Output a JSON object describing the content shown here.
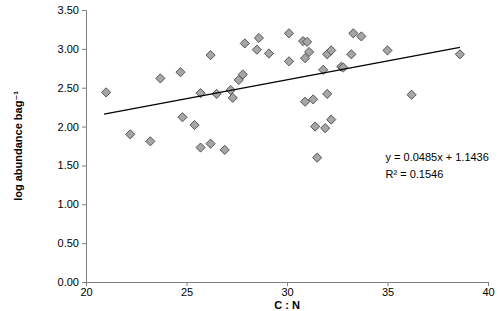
{
  "chart_data": {
    "type": "scatter",
    "x_label": "C : N",
    "y_label": "log abundance bag⁻¹",
    "annotations": [
      "y = 0.0485x + 1.1436",
      "R² = 0.1546"
    ],
    "xlim": [
      20,
      40
    ],
    "xticks": [
      20,
      25,
      30,
      35,
      40
    ],
    "ylim": [
      0,
      3.5
    ],
    "yticks": [
      {
        "value": 0,
        "label": "0.00"
      },
      {
        "value": 0.5,
        "label": "0.50"
      },
      {
        "value": 1,
        "label": "1.00"
      },
      {
        "value": 1.5,
        "label": "1.50"
      },
      {
        "value": 2,
        "label": "2.00"
      },
      {
        "value": 2.5,
        "label": "2.50"
      },
      {
        "value": 3,
        "label": "3.00"
      },
      {
        "value": 3.5,
        "label": "3.50"
      }
    ],
    "grid": false,
    "series": [
      {
        "type": "scatter",
        "marker": "diamond",
        "color": "#a6a6a6",
        "x": [
          21.0,
          22.2,
          23.2,
          23.7,
          24.7,
          24.8,
          25.4,
          25.7,
          25.7,
          26.2,
          26.2,
          26.5,
          26.9,
          27.2,
          27.3,
          27.6,
          27.8,
          27.9,
          28.5,
          28.6,
          29.1,
          30.1,
          30.1,
          30.8,
          30.9,
          30.9,
          31.0,
          31.1,
          31.3,
          31.4,
          31.5,
          31.8,
          31.9,
          32.0,
          32.0,
          32.2,
          32.2,
          32.7,
          32.8,
          33.2,
          33.3,
          33.7,
          35.0,
          36.2,
          38.6
        ],
        "values": [
          2.44,
          1.9,
          1.81,
          2.62,
          2.7,
          2.12,
          2.02,
          2.43,
          1.73,
          2.92,
          1.78,
          2.42,
          1.7,
          2.47,
          2.37,
          2.6,
          2.67,
          3.07,
          2.99,
          3.14,
          2.94,
          3.2,
          2.84,
          3.1,
          2.88,
          2.32,
          3.09,
          2.96,
          2.35,
          2.0,
          1.6,
          2.73,
          1.98,
          2.93,
          2.42,
          2.98,
          2.09,
          2.77,
          2.76,
          2.93,
          3.2,
          3.16,
          2.98,
          2.41,
          2.93
        ]
      },
      {
        "type": "line",
        "line_style": "solid",
        "color": "#000000",
        "x": [
          20.9,
          38.6
        ],
        "values": [
          2.16,
          3.02
        ]
      }
    ]
  }
}
